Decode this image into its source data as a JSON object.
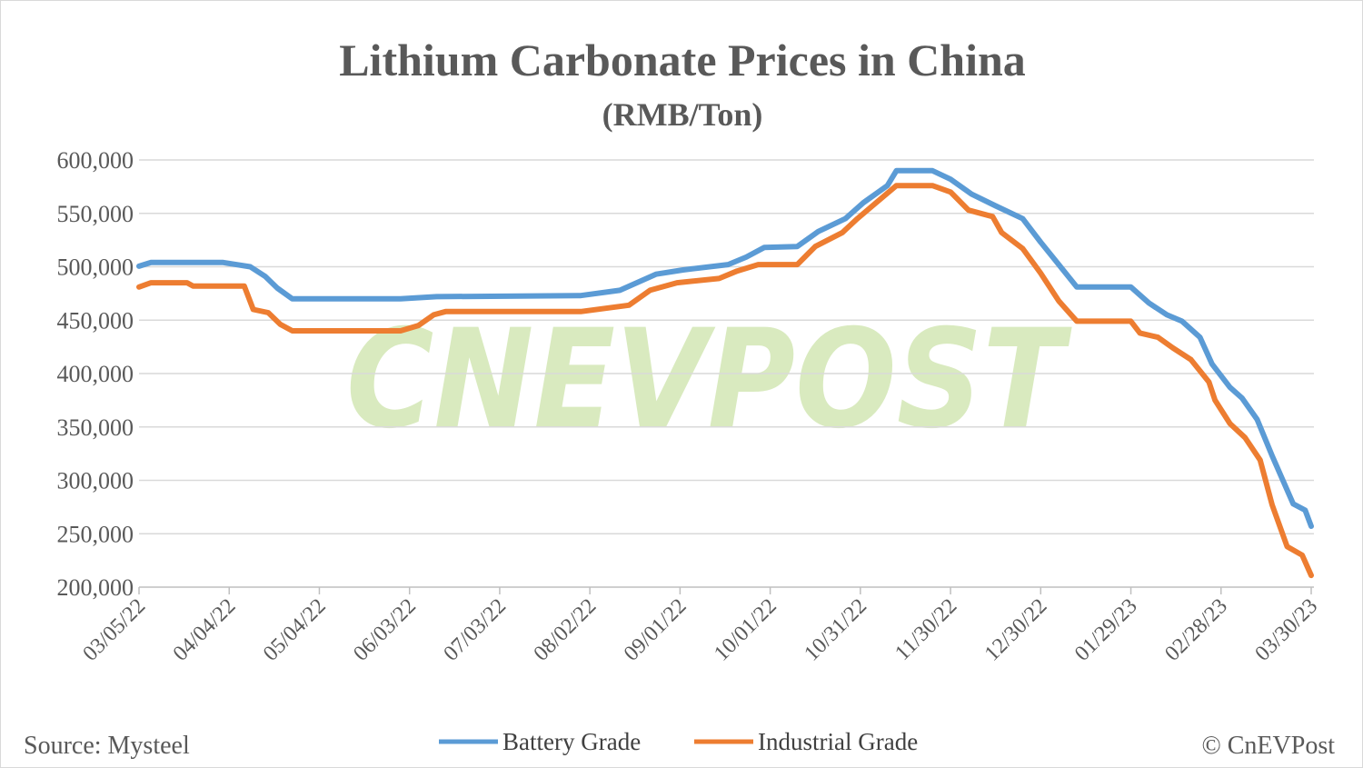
{
  "chart_data": {
    "type": "line",
    "title": "Lithium Carbonate Prices in China",
    "subtitle": "(RMB/Ton)",
    "xlabel": "",
    "ylabel": "",
    "ylim": [
      200000,
      600000
    ],
    "yticks": [
      "200,000",
      "250,000",
      "300,000",
      "350,000",
      "400,000",
      "450,000",
      "500,000",
      "550,000",
      "600,000"
    ],
    "xlim": [
      "2022-03-05",
      "2023-03-30"
    ],
    "xticks": [
      "03/05/22",
      "04/04/22",
      "05/04/22",
      "06/03/22",
      "07/03/22",
      "08/02/22",
      "09/01/22",
      "10/01/22",
      "10/31/22",
      "11/30/22",
      "12/30/22",
      "01/29/23",
      "02/28/23",
      "03/30/23"
    ],
    "grid": "horizontal",
    "legend_position": "bottom",
    "series": [
      {
        "name": "Battery Grade",
        "color": "#5b9bd5",
        "points": [
          [
            "2022-03-05",
            500500
          ],
          [
            "2022-03-09",
            504000
          ],
          [
            "2022-04-02",
            504000
          ],
          [
            "2022-04-11",
            500000
          ],
          [
            "2022-04-16",
            491000
          ],
          [
            "2022-04-20",
            480000
          ],
          [
            "2022-04-25",
            470000
          ],
          [
            "2022-05-31",
            470000
          ],
          [
            "2022-06-12",
            472000
          ],
          [
            "2022-07-30",
            473000
          ],
          [
            "2022-08-12",
            478000
          ],
          [
            "2022-08-24",
            493000
          ],
          [
            "2022-09-02",
            497000
          ],
          [
            "2022-09-17",
            502000
          ],
          [
            "2022-09-23",
            509000
          ],
          [
            "2022-09-29",
            518000
          ],
          [
            "2022-10-10",
            519000
          ],
          [
            "2022-10-17",
            533000
          ],
          [
            "2022-10-26",
            545000
          ],
          [
            "2022-11-01",
            560000
          ],
          [
            "2022-11-09",
            576000
          ],
          [
            "2022-11-12",
            590000
          ],
          [
            "2022-11-24",
            590000
          ],
          [
            "2022-11-30",
            582000
          ],
          [
            "2022-12-07",
            568000
          ],
          [
            "2022-12-15",
            557000
          ],
          [
            "2022-12-24",
            545000
          ],
          [
            "2022-12-30",
            523000
          ],
          [
            "2023-01-05",
            502000
          ],
          [
            "2023-01-11",
            481000
          ],
          [
            "2023-01-29",
            481000
          ],
          [
            "2023-02-04",
            466000
          ],
          [
            "2023-02-10",
            455000
          ],
          [
            "2023-02-15",
            449000
          ],
          [
            "2023-02-21",
            434000
          ],
          [
            "2023-02-25",
            409000
          ],
          [
            "2023-03-03",
            387000
          ],
          [
            "2023-03-07",
            377000
          ],
          [
            "2023-03-12",
            357000
          ],
          [
            "2023-03-17",
            323000
          ],
          [
            "2023-03-24",
            278000
          ],
          [
            "2023-03-28",
            272000
          ],
          [
            "2023-03-30",
            257000
          ]
        ]
      },
      {
        "name": "Industrial Grade",
        "color": "#ed7d31",
        "points": [
          [
            "2022-03-05",
            481000
          ],
          [
            "2022-03-09",
            485000
          ],
          [
            "2022-03-21",
            485000
          ],
          [
            "2022-03-23",
            482000
          ],
          [
            "2022-04-09",
            482000
          ],
          [
            "2022-04-12",
            460000
          ],
          [
            "2022-04-17",
            457000
          ],
          [
            "2022-04-21",
            446000
          ],
          [
            "2022-04-25",
            440000
          ],
          [
            "2022-05-31",
            440000
          ],
          [
            "2022-06-06",
            445000
          ],
          [
            "2022-06-11",
            455000
          ],
          [
            "2022-06-15",
            458000
          ],
          [
            "2022-07-30",
            458000
          ],
          [
            "2022-08-15",
            464000
          ],
          [
            "2022-08-22",
            478000
          ],
          [
            "2022-08-31",
            485000
          ],
          [
            "2022-09-14",
            489000
          ],
          [
            "2022-09-20",
            496000
          ],
          [
            "2022-09-27",
            502000
          ],
          [
            "2022-10-10",
            502000
          ],
          [
            "2022-10-16",
            519000
          ],
          [
            "2022-10-25",
            532000
          ],
          [
            "2022-10-30",
            545000
          ],
          [
            "2022-11-04",
            557000
          ],
          [
            "2022-11-12",
            576000
          ],
          [
            "2022-11-24",
            576000
          ],
          [
            "2022-11-30",
            570000
          ],
          [
            "2022-12-06",
            553000
          ],
          [
            "2022-12-14",
            547000
          ],
          [
            "2022-12-17",
            532000
          ],
          [
            "2022-12-24",
            517000
          ],
          [
            "2022-12-30",
            494000
          ],
          [
            "2023-01-05",
            468000
          ],
          [
            "2023-01-11",
            449000
          ],
          [
            "2023-01-29",
            449000
          ],
          [
            "2023-02-01",
            438000
          ],
          [
            "2023-02-07",
            434000
          ],
          [
            "2023-02-12",
            424000
          ],
          [
            "2023-02-18",
            413000
          ],
          [
            "2023-02-24",
            392000
          ],
          [
            "2023-02-26",
            375000
          ],
          [
            "2023-03-03",
            353000
          ],
          [
            "2023-03-08",
            340000
          ],
          [
            "2023-03-13",
            319000
          ],
          [
            "2023-03-17",
            277000
          ],
          [
            "2023-03-22",
            238000
          ],
          [
            "2023-03-27",
            230000
          ],
          [
            "2023-03-30",
            211000
          ]
        ]
      }
    ]
  },
  "footer": {
    "source": "Source: Mysteel",
    "copyright": "© CnEVPost"
  },
  "watermark": "CNEVPOST"
}
